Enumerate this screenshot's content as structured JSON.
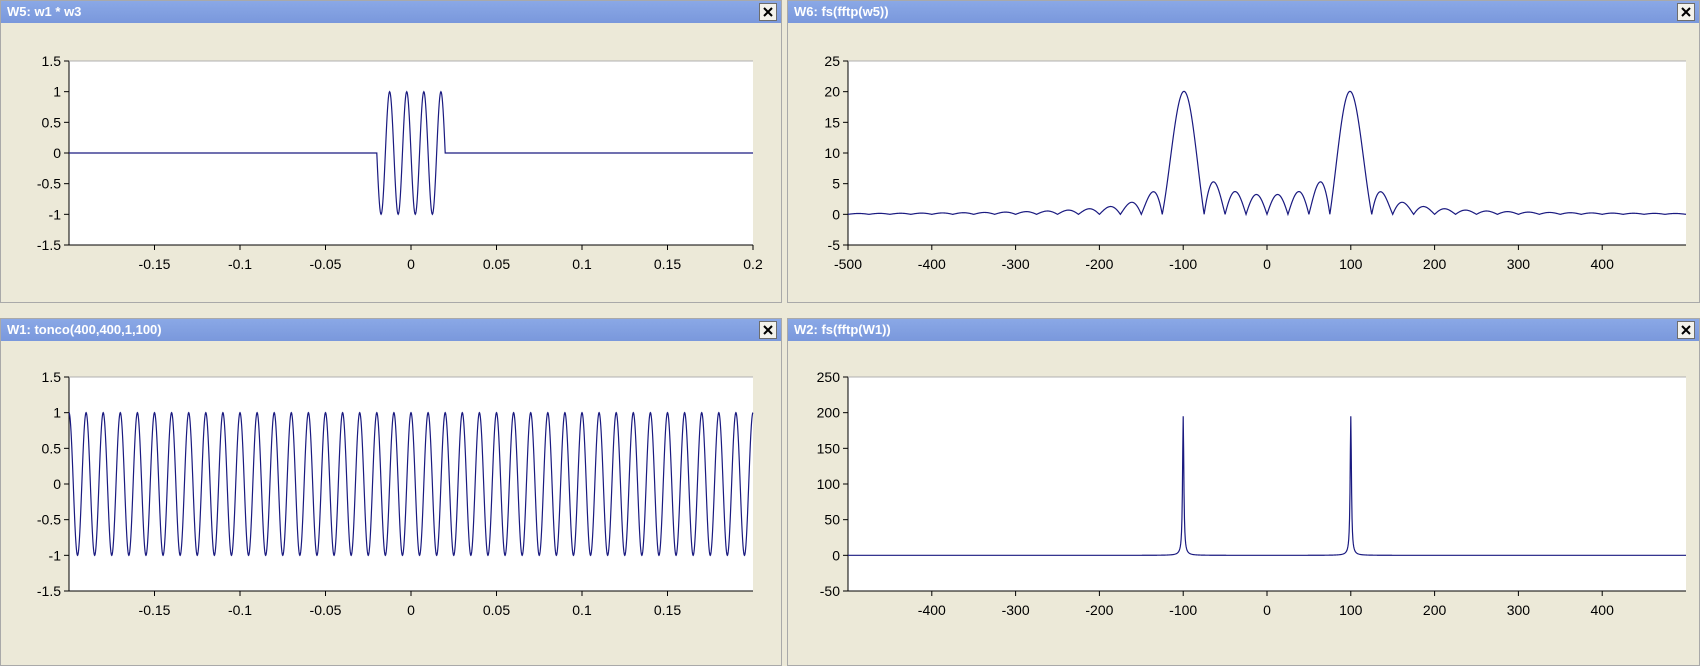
{
  "windows": [
    {
      "id": "w5",
      "title": "W5: w1 * w3",
      "close_icon": "close-icon"
    },
    {
      "id": "w6",
      "title": "W6: fs(fftp(w5))",
      "close_icon": "close-icon"
    },
    {
      "id": "w1",
      "title": "W1: tonco(400,400,1,100)",
      "close_icon": "close-icon"
    },
    {
      "id": "w2",
      "title": "W2: fs(fftp(W1))",
      "close_icon": "close-icon"
    }
  ],
  "colors": {
    "line": "#1a1a80",
    "plot_bg": "#ffffff",
    "frame_bg": "#ece9d8",
    "titlebar": "#7e9ce0"
  },
  "chart_data": [
    {
      "window": "w5",
      "type": "line",
      "title": "",
      "xlabel": "",
      "ylabel": "",
      "xlim": [
        -0.2,
        0.2
      ],
      "ylim": [
        -1.5,
        1.5
      ],
      "xticks": [
        -0.15,
        -0.1,
        -0.05,
        0,
        0.05,
        0.1,
        0.15,
        0.2
      ],
      "xtick_labels": [
        "-0.15",
        "-0.1",
        "-0.05",
        "0",
        "0.05",
        "0.1",
        "0.15",
        "0.2"
      ],
      "yticks": [
        1.5,
        1,
        0.5,
        0,
        -0.5,
        -1,
        -1.5
      ],
      "ytick_labels": [
        "1.5",
        "1",
        "0.5",
        "0",
        "-0.5",
        "-1",
        "-1.5"
      ],
      "grid": false,
      "series": [
        {
          "signal": "windowed_sine",
          "frequency": 100,
          "amplitude": 1,
          "window_start": -0.02,
          "window_end": 0.02,
          "samples": 400
        }
      ]
    },
    {
      "window": "w6",
      "type": "line",
      "title": "",
      "xlabel": "",
      "ylabel": "",
      "xlim": [
        -500,
        500
      ],
      "ylim": [
        -5,
        25
      ],
      "xticks": [
        -500,
        -400,
        -300,
        -200,
        -100,
        0,
        100,
        200,
        300,
        400
      ],
      "xtick_labels": [
        "-500",
        "-400",
        "-300",
        "-200",
        "-100",
        "0",
        "100",
        "200",
        "300",
        "400"
      ],
      "yticks": [
        25,
        20,
        15,
        10,
        5,
        0,
        -5
      ],
      "ytick_labels": [
        "25",
        "20",
        "15",
        "10",
        "5",
        "0",
        "-5"
      ],
      "grid": false,
      "series": [
        {
          "signal": "sinc_magnitude",
          "peaks": [
            -100,
            100
          ],
          "peak_value": 20,
          "main_lobe_halfwidth": 25
        }
      ]
    },
    {
      "window": "w1",
      "type": "line",
      "title": "",
      "xlabel": "",
      "ylabel": "",
      "xlim": [
        -0.2,
        0.2
      ],
      "ylim": [
        -1.5,
        1.5
      ],
      "xticks": [
        -0.15,
        -0.1,
        -0.05,
        0,
        0.05,
        0.1,
        0.15
      ],
      "xtick_labels": [
        "-0.15",
        "-0.1",
        "-0.05",
        "0",
        "0.05",
        "0.1",
        "0.15"
      ],
      "yticks": [
        1.5,
        1,
        0.5,
        0,
        -0.5,
        -1,
        -1.5
      ],
      "ytick_labels": [
        "1.5",
        "1",
        "0.5",
        "0",
        "-0.5",
        "-1",
        "-1.5"
      ],
      "grid": false,
      "series": [
        {
          "signal": "cosine",
          "frequency": 100,
          "amplitude": 1,
          "samples": 400
        }
      ]
    },
    {
      "window": "w2",
      "type": "line",
      "title": "",
      "xlabel": "",
      "ylabel": "",
      "xlim": [
        -500,
        500
      ],
      "ylim": [
        -50,
        250
      ],
      "xticks": [
        -400,
        -300,
        -200,
        -100,
        0,
        100,
        200,
        300,
        400
      ],
      "xtick_labels": [
        "-400",
        "-300",
        "-200",
        "-100",
        "0",
        "100",
        "200",
        "300",
        "400"
      ],
      "yticks": [
        250,
        200,
        150,
        100,
        50,
        0,
        -50
      ],
      "ytick_labels": [
        "250",
        "200",
        "150",
        "100",
        "50",
        "0",
        "-50"
      ],
      "grid": false,
      "series": [
        {
          "signal": "spike_magnitude",
          "peaks": [
            -100,
            100
          ],
          "peak_value": 195
        }
      ]
    }
  ]
}
